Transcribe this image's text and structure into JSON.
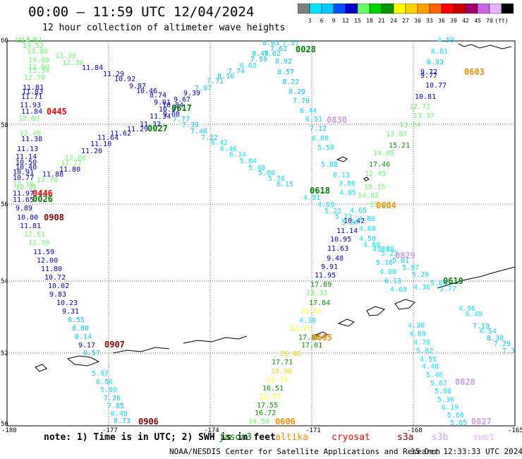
{
  "header": {
    "title": "00:00 – 11:59 UTC 12/04/2024",
    "subtitle": "12 hour collection of altimeter wave heights"
  },
  "scale": {
    "colors": [
      "#7f7f7f",
      "#00e5ff",
      "#00c8ff",
      "#0050ff",
      "#0000cd",
      "#64ff64",
      "#00d200",
      "#009600",
      "#ffff00",
      "#ffd200",
      "#ffa000",
      "#ff6400",
      "#ff0000",
      "#c80000",
      "#a0006e",
      "#c864e6",
      "#e6b4ff",
      "#000000"
    ],
    "labels": [
      "3",
      "6",
      "9",
      "12",
      "15",
      "18",
      "21",
      "24",
      "27",
      "30",
      "33",
      "36",
      "39",
      "42",
      "45",
      "70",
      "(ft)"
    ]
  },
  "map": {
    "lat_labels": [
      "60",
      "58",
      "56",
      "54",
      "52",
      "50"
    ],
    "lon_labels": [
      "-180",
      "-177",
      "-174",
      "-171",
      "-168",
      "-165"
    ],
    "pass_labels": [
      {
        "text": "0445",
        "color": "#ff0000"
      },
      {
        "text": "0446",
        "color": "#ff0000"
      },
      {
        "text": "0026",
        "color": "#008000"
      },
      {
        "text": "0908",
        "color": "#8b0000"
      },
      {
        "text": "0907",
        "color": "#8b0000"
      },
      {
        "text": "0906",
        "color": "#8b0000"
      },
      {
        "text": "0028",
        "color": "#008000"
      },
      {
        "text": "0617",
        "color": "#008000"
      },
      {
        "text": "0027",
        "color": "#008000"
      },
      {
        "text": "0830",
        "color": "#c8a0e6"
      },
      {
        "text": "0603",
        "color": "#ff8c00"
      },
      {
        "text": "0618",
        "color": "#008000"
      },
      {
        "text": "0604",
        "color": "#ff8c00"
      },
      {
        "text": "0829",
        "color": "#c8a0e6"
      },
      {
        "text": "0619",
        "color": "#008000"
      },
      {
        "text": "0605",
        "color": "#ff8c00"
      },
      {
        "text": "0606",
        "color": "#ff8c00"
      },
      {
        "text": "0828",
        "color": "#c8a0e6"
      },
      {
        "text": "0827",
        "color": "#c8a0e6"
      }
    ],
    "heights": [
      {
        "v": "15.13",
        "c": "#64ff64"
      },
      {
        "v": "14.51",
        "c": "#64ff64"
      },
      {
        "v": "14.52",
        "c": "#64ff64"
      },
      {
        "v": "13.80",
        "c": "#64ff64"
      },
      {
        "v": "13.39",
        "c": "#64ff64"
      },
      {
        "v": "14.00",
        "c": "#64ff64"
      },
      {
        "v": "12.99",
        "c": "#64ff64"
      },
      {
        "v": "12.30",
        "c": "#64ff64"
      },
      {
        "v": "13.34",
        "c": "#64ff64"
      },
      {
        "v": "12.70",
        "c": "#64ff64"
      },
      {
        "v": "11.84",
        "c": "#0000cd"
      },
      {
        "v": "11.29",
        "c": "#0000cd"
      },
      {
        "v": "10.92",
        "c": "#0000cd"
      },
      {
        "v": "9.87",
        "c": "#0000cd"
      },
      {
        "v": "10.46",
        "c": "#0000cd"
      },
      {
        "v": "8.74",
        "c": "#0000cd"
      },
      {
        "v": "9.01",
        "c": "#0000cd"
      },
      {
        "v": "11.81",
        "c": "#0000cd"
      },
      {
        "v": "11.83",
        "c": "#0000cd"
      },
      {
        "v": "11.71",
        "c": "#0000cd"
      },
      {
        "v": "11.93",
        "c": "#0000cd"
      },
      {
        "v": "11.84",
        "c": "#0000cd"
      },
      {
        "v": "12.69",
        "c": "#64ff64"
      },
      {
        "v": "12.49",
        "c": "#64ff64"
      },
      {
        "v": "11.38",
        "c": "#0000cd"
      },
      {
        "v": "11.13",
        "c": "#0000cd"
      },
      {
        "v": "11.14",
        "c": "#0000cd"
      },
      {
        "v": "10.50",
        "c": "#0000cd"
      },
      {
        "v": "10.40",
        "c": "#0000cd"
      },
      {
        "v": "10.91",
        "c": "#0000cd"
      },
      {
        "v": "10.77",
        "c": "#0000cd"
      },
      {
        "v": "12.10",
        "c": "#64ff64"
      },
      {
        "v": "12.35",
        "c": "#64ff64"
      },
      {
        "v": "11.97",
        "c": "#0000cd"
      },
      {
        "v": "11.65",
        "c": "#0000cd"
      },
      {
        "v": "12.70",
        "c": "#64ff64"
      },
      {
        "v": "11.88",
        "c": "#0000cd"
      },
      {
        "v": "11.80",
        "c": "#0000cd"
      },
      {
        "v": "12.77",
        "c": "#64ff64"
      },
      {
        "v": "12.09",
        "c": "#64ff64"
      },
      {
        "v": "11.20",
        "c": "#0000cd"
      },
      {
        "v": "11.10",
        "c": "#0000cd"
      },
      {
        "v": "11.64",
        "c": "#0000cd"
      },
      {
        "v": "11.62",
        "c": "#0000cd"
      },
      {
        "v": "11.29",
        "c": "#0000cd"
      },
      {
        "v": "11.32",
        "c": "#0000cd"
      },
      {
        "v": "11.34",
        "c": "#0000cd"
      },
      {
        "v": "10.27",
        "c": "#0000cd"
      },
      {
        "v": "10.84",
        "c": "#0000cd"
      },
      {
        "v": "9.08",
        "c": "#0000cd"
      },
      {
        "v": "9.89",
        "c": "#0000cd"
      },
      {
        "v": "10.80",
        "c": "#0000cd"
      },
      {
        "v": "11.81",
        "c": "#0000cd"
      },
      {
        "v": "12.51",
        "c": "#64ff64"
      },
      {
        "v": "12.79",
        "c": "#64ff64"
      },
      {
        "v": "11.59",
        "c": "#0000cd"
      },
      {
        "v": "12.00",
        "c": "#0000cd"
      },
      {
        "v": "11.80",
        "c": "#0000cd"
      },
      {
        "v": "10.72",
        "c": "#0000cd"
      },
      {
        "v": "10.02",
        "c": "#0000cd"
      },
      {
        "v": "9.83",
        "c": "#0000cd"
      },
      {
        "v": "10.23",
        "c": "#0000cd"
      },
      {
        "v": "9.31",
        "c": "#0000cd"
      },
      {
        "v": "8.55",
        "c": "#00c8ff"
      },
      {
        "v": "8.80",
        "c": "#00c8ff"
      },
      {
        "v": "8.14",
        "c": "#00c8ff"
      },
      {
        "v": "9.17",
        "c": "#0000cd"
      },
      {
        "v": "8.57",
        "c": "#00c8ff"
      },
      {
        "v": "5.97",
        "c": "#00e5ff"
      },
      {
        "v": "6.56",
        "c": "#00e5ff"
      },
      {
        "v": "5.99",
        "c": "#00e5ff"
      },
      {
        "v": "7.26",
        "c": "#00c8ff"
      },
      {
        "v": "7.85",
        "c": "#00c8ff"
      },
      {
        "v": "6.49",
        "c": "#00e5ff"
      },
      {
        "v": "8.73",
        "c": "#00c8ff"
      },
      {
        "v": "8.03",
        "c": "#00c8ff"
      },
      {
        "v": "7.57",
        "c": "#00c8ff"
      },
      {
        "v": "7.62",
        "c": "#00c8ff"
      },
      {
        "v": "8.40",
        "c": "#00c8ff"
      },
      {
        "v": "7.62",
        "c": "#00c8ff"
      },
      {
        "v": "8.92",
        "c": "#00c8ff"
      },
      {
        "v": "7.59",
        "c": "#00c8ff"
      },
      {
        "v": "6.62",
        "c": "#00e5ff"
      },
      {
        "v": "7.74",
        "c": "#00c8ff"
      },
      {
        "v": "8.57",
        "c": "#00c8ff"
      },
      {
        "v": "8.16",
        "c": "#00c8ff"
      },
      {
        "v": "7.71",
        "c": "#00c8ff"
      },
      {
        "v": "8.22",
        "c": "#00c8ff"
      },
      {
        "v": "7.97",
        "c": "#00c8ff"
      },
      {
        "v": "8.29",
        "c": "#00c8ff"
      },
      {
        "v": "9.39",
        "c": "#0000cd"
      },
      {
        "v": "9.67",
        "c": "#0000cd"
      },
      {
        "v": "7.70",
        "c": "#00c8ff"
      },
      {
        "v": "6.44",
        "c": "#00e5ff"
      },
      {
        "v": "6.51",
        "c": "#00e5ff"
      },
      {
        "v": "7.77",
        "c": "#00c8ff"
      },
      {
        "v": "7.39",
        "c": "#00c8ff"
      },
      {
        "v": "7.46",
        "c": "#00c8ff"
      },
      {
        "v": "7.12",
        "c": "#00c8ff"
      },
      {
        "v": "7.22",
        "c": "#00c8ff"
      },
      {
        "v": "6.42",
        "c": "#00e5ff"
      },
      {
        "v": "6.60",
        "c": "#00e5ff"
      },
      {
        "v": "6.46",
        "c": "#00e5ff"
      },
      {
        "v": "5.58",
        "c": "#00e5ff"
      },
      {
        "v": "6.14",
        "c": "#00e5ff"
      },
      {
        "v": "5.84",
        "c": "#00e5ff"
      },
      {
        "v": "5.88",
        "c": "#00e5ff"
      },
      {
        "v": "5.48",
        "c": "#00e5ff"
      },
      {
        "v": "5.86",
        "c": "#00e5ff"
      },
      {
        "v": "6.13",
        "c": "#00e5ff"
      },
      {
        "v": "5.78",
        "c": "#00e5ff"
      },
      {
        "v": "6.15",
        "c": "#00e5ff"
      },
      {
        "v": "3.86",
        "c": "#00e5ff"
      },
      {
        "v": "4.91",
        "c": "#00e5ff"
      },
      {
        "v": "4.85",
        "c": "#00e5ff"
      },
      {
        "v": "4.69",
        "c": "#00e5ff"
      },
      {
        "v": "5.22",
        "c": "#00e5ff"
      },
      {
        "v": "5.23",
        "c": "#00e5ff"
      },
      {
        "v": "5.26",
        "c": "#00e5ff"
      },
      {
        "v": "10.42",
        "c": "#0000cd"
      },
      {
        "v": "11.14",
        "c": "#0000cd"
      },
      {
        "v": "10.95",
        "c": "#0000cd"
      },
      {
        "v": "11.63",
        "c": "#0000cd"
      },
      {
        "v": "9.48",
        "c": "#0000cd"
      },
      {
        "v": "9.91",
        "c": "#0000cd"
      },
      {
        "v": "11.95",
        "c": "#0000cd"
      },
      {
        "v": "4.59",
        "c": "#00e5ff"
      },
      {
        "v": "6.81",
        "c": "#00e5ff"
      },
      {
        "v": "8.93",
        "c": "#00c8ff"
      },
      {
        "v": "9.72",
        "c": "#0000cd"
      },
      {
        "v": "9.77",
        "c": "#0000cd"
      },
      {
        "v": "10.77",
        "c": "#0000cd"
      },
      {
        "v": "10.81",
        "c": "#0000cd"
      },
      {
        "v": "12.72",
        "c": "#64ff64"
      },
      {
        "v": "13.37",
        "c": "#64ff64"
      },
      {
        "v": "13.24",
        "c": "#64ff64"
      },
      {
        "v": "13.07",
        "c": "#64ff64"
      },
      {
        "v": "15.21",
        "c": "#009600"
      },
      {
        "v": "14.85",
        "c": "#64ff64"
      },
      {
        "v": "17.46",
        "c": "#009600"
      },
      {
        "v": "12.45",
        "c": "#64ff64"
      },
      {
        "v": "15.15",
        "c": "#64ff64"
      },
      {
        "v": "14.02",
        "c": "#64ff64"
      },
      {
        "v": "15.26",
        "c": "#64ff64"
      },
      {
        "v": "4.65",
        "c": "#00e5ff"
      },
      {
        "v": "4.80",
        "c": "#00e5ff"
      },
      {
        "v": "4.60",
        "c": "#00e5ff"
      },
      {
        "v": "4.50",
        "c": "#00e5ff"
      },
      {
        "v": "4.80",
        "c": "#00e5ff"
      },
      {
        "v": "4.88",
        "c": "#00e5ff"
      },
      {
        "v": "5.23",
        "c": "#00e5ff"
      },
      {
        "v": "5.38",
        "c": "#00e5ff"
      },
      {
        "v": "5.16",
        "c": "#00e5ff"
      },
      {
        "v": "4.08",
        "c": "#00e5ff"
      },
      {
        "v": "5.01",
        "c": "#00e5ff"
      },
      {
        "v": "5.97",
        "c": "#00e5ff"
      },
      {
        "v": "6.13",
        "c": "#00e5ff"
      },
      {
        "v": "5.29",
        "c": "#00e5ff"
      },
      {
        "v": "4.69",
        "c": "#00e5ff"
      },
      {
        "v": "4.36",
        "c": "#00e5ff"
      },
      {
        "v": "5.66",
        "c": "#00e5ff"
      },
      {
        "v": "5.77",
        "c": "#00e5ff"
      },
      {
        "v": "17.89",
        "c": "#009600"
      },
      {
        "v": "13.33",
        "c": "#64ff64"
      },
      {
        "v": "17.84",
        "c": "#009600"
      },
      {
        "v": "23.81",
        "c": "#ffff00"
      },
      {
        "v": "4.38",
        "c": "#00e5ff"
      },
      {
        "v": "22.21",
        "c": "#ffff00"
      },
      {
        "v": "17.88",
        "c": "#009600"
      },
      {
        "v": "17.01",
        "c": "#009600"
      },
      {
        "v": "26.05",
        "c": "#ffd200"
      },
      {
        "v": "17.71",
        "c": "#009600"
      },
      {
        "v": "25.96",
        "c": "#ffd200"
      },
      {
        "v": "21.74",
        "c": "#ffff00"
      },
      {
        "v": "16.51",
        "c": "#009600"
      },
      {
        "v": "22.57",
        "c": "#ffff00"
      },
      {
        "v": "17.55",
        "c": "#009600"
      },
      {
        "v": "16.72",
        "c": "#009600"
      },
      {
        "v": "14.50",
        "c": "#64ff64"
      },
      {
        "v": "4.96",
        "c": "#00e5ff"
      },
      {
        "v": "6.49",
        "c": "#00e5ff"
      },
      {
        "v": "7.19",
        "c": "#00c8ff"
      },
      {
        "v": "6.54",
        "c": "#00e5ff"
      },
      {
        "v": "8.30",
        "c": "#00c8ff"
      },
      {
        "v": "7.29",
        "c": "#00c8ff"
      },
      {
        "v": "7.3",
        "c": "#00c8ff"
      },
      {
        "v": "4.30",
        "c": "#00e5ff"
      },
      {
        "v": "4.69",
        "c": "#00e5ff"
      },
      {
        "v": "4.78",
        "c": "#00e5ff"
      },
      {
        "v": "5.02",
        "c": "#00e5ff"
      },
      {
        "v": "4.55",
        "c": "#00e5ff"
      },
      {
        "v": "4.48",
        "c": "#00e5ff"
      },
      {
        "v": "5.46",
        "c": "#00e5ff"
      },
      {
        "v": "5.67",
        "c": "#00e5ff"
      },
      {
        "v": "5.08",
        "c": "#00e5ff"
      },
      {
        "v": "5.36",
        "c": "#00e5ff"
      },
      {
        "v": "6.19",
        "c": "#00e5ff"
      },
      {
        "v": "5.66",
        "c": "#00e5ff"
      },
      {
        "v": "5.65",
        "c": "#00e5ff"
      }
    ]
  },
  "footer": {
    "note": "note: 1) Time is in UTC; 2) SWH is in feet",
    "legend": [
      {
        "name": "jason3",
        "color": "#008000"
      },
      {
        "name": "altika",
        "color": "#ff8c00"
      },
      {
        "name": "cryosat",
        "color": "#ff0000"
      },
      {
        "name": "s3a",
        "color": "#8b0000"
      },
      {
        "name": "s3b",
        "color": "#c8a0e6"
      },
      {
        "name": "swot",
        "color": "#e6b4ff"
      }
    ],
    "credit": "NOAA/NESDIS Center for Satellite Applications and Research",
    "timestamp": "15 Dec 12:33:33 UTC 2024"
  }
}
